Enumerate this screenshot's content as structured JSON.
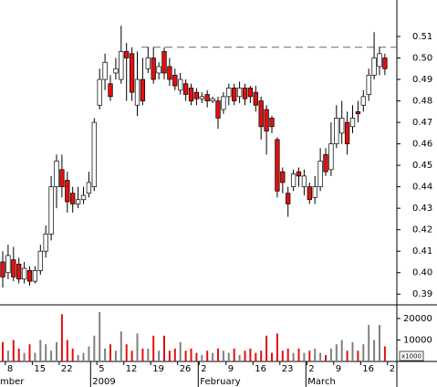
{
  "chart_data": {
    "type": "candlestick",
    "categories": [
      null,
      "8",
      null,
      null,
      null,
      null,
      "15",
      null,
      null,
      null,
      null,
      "22",
      null,
      null,
      null,
      null,
      null,
      null,
      "5",
      null,
      null,
      null,
      null,
      "12",
      null,
      null,
      null,
      null,
      "19",
      null,
      null,
      null,
      null,
      "26",
      null,
      null,
      null,
      "2",
      null,
      null,
      null,
      null,
      "9",
      null,
      null,
      null,
      null,
      "16",
      null,
      null,
      null,
      null,
      "23",
      null,
      null,
      null,
      null,
      "2",
      null,
      null,
      null,
      null,
      "9",
      null,
      null,
      null,
      null,
      "16",
      null,
      null,
      null,
      null,
      "2"
    ],
    "month_labels": [
      "mber",
      null,
      null,
      null,
      null,
      null,
      null,
      null,
      null,
      null,
      null,
      null,
      null,
      null,
      null,
      null,
      null,
      "2009",
      null,
      null,
      null,
      null,
      null,
      null,
      null,
      null,
      null,
      null,
      null,
      null,
      null,
      null,
      null,
      null,
      null,
      null,
      null,
      "February",
      null,
      null,
      null,
      null,
      null,
      null,
      null,
      null,
      null,
      null,
      null,
      null,
      null,
      null,
      null,
      null,
      null,
      null,
      null,
      "March",
      null,
      null,
      null,
      null,
      null,
      null,
      null,
      null,
      null,
      null,
      null,
      null,
      null,
      null,
      null,
      null
    ],
    "open": [
      0.405,
      0.4,
      0.406,
      0.404,
      0.397,
      0.401,
      0.396,
      0.401,
      0.41,
      0.418,
      0.44,
      0.448,
      0.443,
      0.437,
      0.432,
      0.434,
      0.437,
      0.44,
      0.478,
      0.49,
      0.488,
      0.493,
      0.49,
      0.503,
      0.502,
      0.478,
      0.49,
      0.495,
      0.5,
      0.493,
      0.503,
      0.496,
      0.492,
      0.485,
      0.488,
      0.486,
      0.484,
      0.481,
      0.483,
      0.48,
      0.48,
      0.476,
      0.482,
      0.486,
      0.482,
      0.486,
      0.486,
      0.484,
      0.48,
      0.476,
      0.472,
      0.462,
      0.447,
      0.437,
      0.44,
      0.447,
      0.44,
      0.44,
      0.435,
      0.44,
      0.455,
      0.448,
      0.46,
      0.465,
      0.47,
      0.468,
      0.475,
      0.478,
      0.483,
      0.492,
      0.496,
      0.5,
      null
    ],
    "high": [
      0.41,
      0.413,
      0.412,
      0.407,
      0.405,
      0.403,
      0.403,
      0.413,
      0.422,
      0.445,
      0.455,
      0.455,
      0.447,
      0.44,
      0.44,
      0.44,
      0.447,
      0.472,
      0.495,
      0.502,
      0.492,
      0.5,
      0.515,
      0.507,
      0.505,
      0.503,
      0.5,
      0.505,
      0.505,
      0.498,
      0.505,
      0.5,
      0.495,
      0.493,
      0.49,
      0.488,
      0.486,
      0.484,
      0.485,
      0.482,
      0.482,
      0.484,
      0.488,
      0.488,
      0.489,
      0.488,
      0.487,
      0.487,
      0.482,
      0.478,
      0.473,
      0.463,
      0.449,
      0.44,
      0.448,
      0.449,
      0.448,
      0.442,
      0.445,
      0.458,
      0.458,
      0.47,
      0.478,
      0.48,
      0.475,
      0.478,
      0.48,
      0.485,
      0.495,
      0.512,
      0.505,
      0.502,
      null
    ],
    "low": [
      0.393,
      0.397,
      0.396,
      0.395,
      0.395,
      0.394,
      0.395,
      0.399,
      0.407,
      0.415,
      0.43,
      0.435,
      0.428,
      0.428,
      0.43,
      0.432,
      0.435,
      0.438,
      0.476,
      0.485,
      0.48,
      0.49,
      0.488,
      0.48,
      0.48,
      0.473,
      0.478,
      0.493,
      0.488,
      0.49,
      0.49,
      0.487,
      0.485,
      0.483,
      0.48,
      0.478,
      0.478,
      0.479,
      0.477,
      0.479,
      0.467,
      0.474,
      0.478,
      0.478,
      0.479,
      0.478,
      0.479,
      0.475,
      0.462,
      0.455,
      0.465,
      0.435,
      0.437,
      0.426,
      0.438,
      0.44,
      0.436,
      0.432,
      0.432,
      0.438,
      0.445,
      0.445,
      0.458,
      0.46,
      0.455,
      0.465,
      0.47,
      0.475,
      0.48,
      0.49,
      0.492,
      0.492,
      null
    ],
    "close": [
      0.398,
      0.408,
      0.398,
      0.397,
      0.402,
      0.396,
      0.401,
      0.41,
      0.418,
      0.44,
      0.452,
      0.44,
      0.433,
      0.432,
      0.434,
      0.436,
      0.442,
      0.47,
      0.49,
      0.498,
      0.482,
      0.495,
      0.503,
      0.5,
      0.484,
      0.49,
      0.48,
      0.5,
      0.49,
      0.496,
      0.493,
      0.49,
      0.487,
      0.49,
      0.483,
      0.48,
      0.481,
      0.482,
      0.48,
      0.481,
      0.472,
      0.482,
      0.486,
      0.48,
      0.486,
      0.481,
      0.482,
      0.478,
      0.468,
      0.466,
      0.468,
      0.438,
      0.442,
      0.432,
      0.446,
      0.445,
      0.445,
      0.434,
      0.44,
      0.452,
      0.447,
      0.46,
      0.472,
      0.472,
      0.46,
      0.472,
      0.474,
      0.482,
      0.492,
      0.5,
      0.502,
      0.495,
      null
    ],
    "volume": [
      9000,
      5000,
      10000,
      6000,
      4000,
      8000,
      4000,
      10000,
      8000,
      5000,
      9000,
      22000,
      10000,
      6000,
      3000,
      4000,
      7000,
      12000,
      23000,
      6000,
      8000,
      5000,
      14000,
      8000,
      5000,
      13000,
      6000,
      6000,
      12000,
      5000,
      12000,
      5000,
      6000,
      9000,
      5000,
      6000,
      4000,
      3000,
      5000,
      4000,
      6000,
      5000,
      4000,
      6000,
      3000,
      5000,
      6000,
      4000,
      5000,
      12000,
      4000,
      13000,
      5000,
      6000,
      4000,
      6000,
      4000,
      5000,
      6000,
      4000,
      3000,
      6000,
      8000,
      10000,
      5000,
      9000,
      5000,
      8000,
      17000,
      10000,
      17000,
      7000,
      null
    ],
    "up_color": "#ffffff",
    "down_color": "#e01010",
    "volume_up_color": "#808080",
    "volume_down_color": "#e01010",
    "ylim": [
      0.385,
      0.527
    ],
    "yticks": [
      0.39,
      {
        "value": 0.4,
        "label": "0.40"
      },
      0.41,
      0.42,
      0.43,
      0.44,
      0.45,
      0.46,
      0.47,
      0.48,
      0.49,
      {
        "value": 0.5,
        "label": "0.50"
      },
      0.51
    ],
    "volume_ylim": [
      0,
      25500
    ],
    "volume_yticks": [
      10000,
      20000
    ],
    "volume_unit_label": "x1000",
    "reference_line": 0.505
  }
}
